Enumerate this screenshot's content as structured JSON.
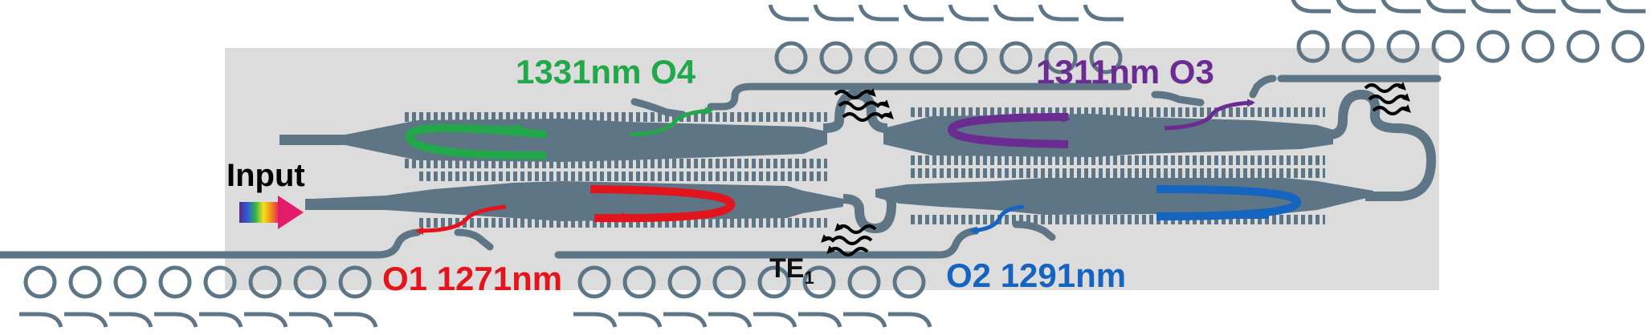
{
  "colors": {
    "waveguide": "#5d7585",
    "chip_background": "#dcdcdc",
    "o1": "#e3141c",
    "o2": "#1565c0",
    "o3": "#6a2c91",
    "o4": "#22a84a",
    "input_text": "#000000"
  },
  "labels": {
    "input": "Input",
    "o4": "1331nm O4",
    "o3": "1311nm O3",
    "o1": "O1 1271nm",
    "o2": "O2 1291nm",
    "te_mode": "TE",
    "te_mode_sub": "1"
  },
  "icons": {
    "input_arrow": "rainbow-arrow-icon",
    "radiation": "wavy-radiation-arrow-icon",
    "grating_coupler": "circle-grating-icon"
  }
}
